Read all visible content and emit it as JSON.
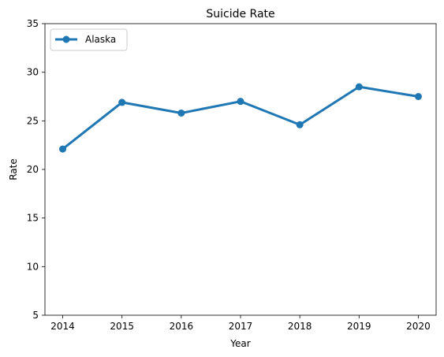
{
  "chart_data": {
    "type": "line",
    "title": "Suicide Rate",
    "xlabel": "Year",
    "ylabel": "Rate",
    "x": [
      2014,
      2015,
      2016,
      2017,
      2018,
      2019,
      2020
    ],
    "xlim": [
      2013.7,
      2020.3
    ],
    "ylim": [
      5,
      35
    ],
    "xticks": [
      "2014",
      "2015",
      "2016",
      "2017",
      "2018",
      "2019",
      "2020"
    ],
    "yticks": [
      "5",
      "10",
      "15",
      "20",
      "25",
      "30",
      "35"
    ],
    "grid": false,
    "legend_position": "top-left",
    "series": [
      {
        "name": "Alaska",
        "color": "#1f77b4",
        "marker": "circle",
        "values": [
          22.1,
          26.9,
          25.8,
          27.0,
          24.6,
          28.5,
          27.5
        ]
      }
    ]
  }
}
